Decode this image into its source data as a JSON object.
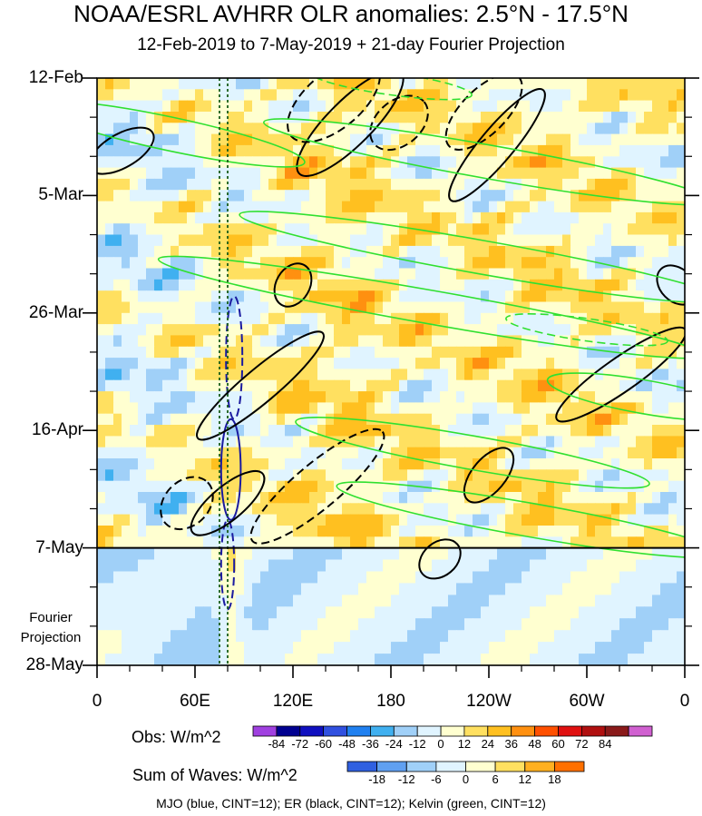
{
  "chart_data": {
    "type": "heatmap",
    "title": "NOAA/ESRL AVHRR OLR anomalies: 2.5°N - 17.5°N",
    "subtitle": "12-Feb-2019 to 7-May-2019 + 21-day Fourier Projection",
    "x_ticks": [
      "0",
      "60E",
      "120E",
      "180",
      "120W",
      "60W",
      "0"
    ],
    "x_tick_values": [
      0,
      60,
      120,
      180,
      240,
      300,
      360
    ],
    "xlim": [
      0,
      360
    ],
    "y_ticks": [
      "12-Feb",
      "5-Mar",
      "26-Mar",
      "16-Apr",
      "7-May",
      "28-May"
    ],
    "y_tick_days": [
      0,
      21,
      42,
      63,
      84,
      105
    ],
    "ylim_days": [
      0,
      105
    ],
    "observation_end_day": 84,
    "projection_label": "Fourier Projection",
    "obs_legend": {
      "title": "Obs: W/m^2",
      "levels": [
        "-84",
        "-72",
        "-60",
        "-48",
        "-36",
        "-24",
        "-12",
        "0",
        "12",
        "24",
        "36",
        "48",
        "60",
        "72",
        "84"
      ],
      "colors": [
        "#a040e0",
        "#000090",
        "#1010c0",
        "#3050e0",
        "#2080f0",
        "#40b0f0",
        "#a0d0f8",
        "#e0f4ff",
        "#ffffd0",
        "#ffe060",
        "#ffc020",
        "#ff9010",
        "#ff5000",
        "#e01010",
        "#b01010",
        "#8a1a1a",
        "#d060d0"
      ]
    },
    "waves_legend": {
      "title": "Sum of Waves: W/m^2",
      "levels": [
        "-18",
        "-12",
        "-6",
        "0",
        "6",
        "12",
        "18"
      ],
      "colors": [
        "#3060e0",
        "#60a0f0",
        "#a0d0f8",
        "#e0f4ff",
        "#ffffd0",
        "#ffe060",
        "#ffb020",
        "#ff7000"
      ]
    },
    "contours": [
      {
        "wave": "MJO",
        "color": "#1a1aa0",
        "sign": "negative",
        "lon": 82,
        "day": 70,
        "rx": 6,
        "ry": 9,
        "angle": 0
      },
      {
        "wave": "MJO",
        "color": "#1a1aa0",
        "sign": "positive",
        "lon": 84,
        "day": 50,
        "rx": 5,
        "ry": 11,
        "angle": 0
      },
      {
        "wave": "MJO",
        "color": "#1a1aa0",
        "sign": "positive",
        "lon": 80,
        "day": 87,
        "rx": 4,
        "ry": 8,
        "angle": 0
      },
      {
        "wave": "ER",
        "color": "#000000",
        "sign": "negative",
        "lon": 15,
        "day": 13,
        "rx": 22,
        "ry": 3,
        "angle": -30
      },
      {
        "wave": "ER",
        "color": "#000000",
        "sign": "negative",
        "lon": 80,
        "day": 76,
        "rx": 28,
        "ry": 3,
        "angle": -40
      },
      {
        "wave": "ER",
        "color": "#000000",
        "sign": "negative",
        "lon": 100,
        "day": 55,
        "rx": 50,
        "ry": 3,
        "angle": -40
      },
      {
        "wave": "ER",
        "color": "#000000",
        "sign": "negative",
        "lon": 155,
        "day": 8,
        "rx": 44,
        "ry": 4,
        "angle": -45
      },
      {
        "wave": "ER",
        "color": "#000000",
        "sign": "negative",
        "lon": 120,
        "day": 37,
        "rx": 14,
        "ry": 3,
        "angle": -60
      },
      {
        "wave": "ER",
        "color": "#000000",
        "sign": "negative",
        "lon": 245,
        "day": 12,
        "rx": 44,
        "ry": 3,
        "angle": -50
      },
      {
        "wave": "ER",
        "color": "#000000",
        "sign": "negative",
        "lon": 321,
        "day": 53,
        "rx": 48,
        "ry": 3,
        "angle": -35
      },
      {
        "wave": "ER",
        "color": "#000000",
        "sign": "negative",
        "lon": 240,
        "day": 71,
        "rx": 20,
        "ry": 3,
        "angle": -50
      },
      {
        "wave": "ER",
        "color": "#000000",
        "sign": "negative",
        "lon": 355,
        "day": 37,
        "rx": 10,
        "ry": 4,
        "angle": -45
      },
      {
        "wave": "ER",
        "color": "#000000",
        "sign": "negative",
        "lon": 210,
        "day": 86,
        "rx": 14,
        "ry": 3,
        "angle": -40
      },
      {
        "wave": "ER",
        "color": "#000000",
        "sign": "positive",
        "lon": 145,
        "day": 4,
        "rx": 34,
        "ry": 5,
        "angle": -40
      },
      {
        "wave": "ER",
        "color": "#000000",
        "sign": "positive",
        "lon": 185,
        "day": 8,
        "rx": 20,
        "ry": 4,
        "angle": -40
      },
      {
        "wave": "ER",
        "color": "#000000",
        "sign": "positive",
        "lon": 55,
        "day": 76,
        "rx": 18,
        "ry": 4,
        "angle": -45
      },
      {
        "wave": "ER",
        "color": "#000000",
        "sign": "positive",
        "lon": 135,
        "day": 73,
        "rx": 52,
        "ry": 4,
        "angle": -40
      },
      {
        "wave": "ER",
        "color": "#000000",
        "sign": "positive",
        "lon": 237,
        "day": 6,
        "rx": 30,
        "ry": 4,
        "angle": -45
      },
      {
        "wave": "Kelvin",
        "color": "#30e030",
        "sign": "negative",
        "lon": 45,
        "day": 10,
        "rx": 84,
        "ry": 3,
        "angle": 12
      },
      {
        "wave": "Kelvin",
        "color": "#30e030",
        "sign": "negative",
        "lon": 240,
        "day": 15,
        "rx": 140,
        "ry": 3,
        "angle": 10
      },
      {
        "wave": "Kelvin",
        "color": "#30e030",
        "sign": "negative",
        "lon": 235,
        "day": 32,
        "rx": 150,
        "ry": 3,
        "angle": 10
      },
      {
        "wave": "Kelvin",
        "color": "#30e030",
        "sign": "negative",
        "lon": 205,
        "day": 41,
        "rx": 170,
        "ry": 3,
        "angle": 10
      },
      {
        "wave": "Kelvin",
        "color": "#30e030",
        "sign": "negative",
        "lon": 335,
        "day": 57,
        "rx": 60,
        "ry": 3,
        "angle": 10
      },
      {
        "wave": "Kelvin",
        "color": "#30e030",
        "sign": "negative",
        "lon": 230,
        "day": 67,
        "rx": 110,
        "ry": 3,
        "angle": 10
      },
      {
        "wave": "Kelvin",
        "color": "#30e030",
        "sign": "negative",
        "lon": 265,
        "day": 79,
        "rx": 120,
        "ry": 3,
        "angle": 10
      },
      {
        "wave": "Kelvin",
        "color": "#30e030",
        "sign": "positive",
        "lon": 180,
        "day": 1,
        "rx": 50,
        "ry": 2,
        "angle": 8
      },
      {
        "wave": "Kelvin",
        "color": "#30e030",
        "sign": "positive",
        "lon": 300,
        "day": 45,
        "rx": 50,
        "ry": 2,
        "angle": 8
      }
    ]
  },
  "footer": "MJO (blue, CINT=12); ER (black, CINT=12); Kelvin (green, CINT=12)"
}
